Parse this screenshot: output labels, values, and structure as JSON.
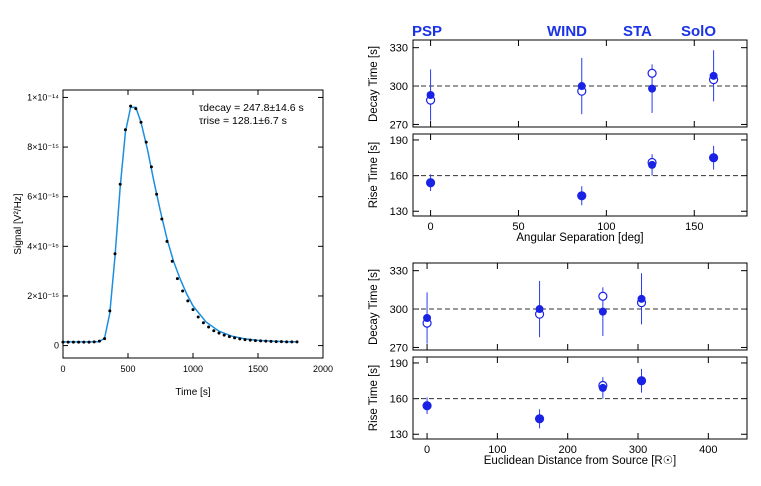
{
  "colors": {
    "curve": "#1a8fe0",
    "points": "#000000",
    "marker": "#1a22e6",
    "errorbar": "#2a3aee",
    "label": "#1a33e6",
    "reference_line": "#333333"
  },
  "spacecraft_labels": [
    "PSP",
    "WIND",
    "STA",
    "SolO"
  ],
  "chart_data": [
    {
      "type": "line",
      "xlabel": "Time [s]",
      "ylabel": "Signal [V²/Hz]",
      "xlim": [
        0,
        2000
      ],
      "ylim": [
        -5e-16,
        1.03e-14
      ],
      "x_ticks": [
        0,
        500,
        1000,
        1500,
        2000
      ],
      "y_ticks": [
        0,
        2e-15,
        4e-15,
        6e-15,
        8e-15,
        1e-14
      ],
      "y_tick_labels": [
        "0",
        "2×10⁻¹⁵",
        "4×10⁻¹⁵",
        "6×10⁻¹⁵",
        "8×10⁻¹⁵",
        "1×10⁻¹⁴"
      ],
      "annotations": [
        "τdecay = 247.8±14.6 s",
        "τrise = 128.1±6.7 s"
      ],
      "series": [
        {
          "style": "points",
          "x": [
            0,
            40,
            80,
            120,
            160,
            200,
            240,
            280,
            320,
            360,
            400,
            440,
            480,
            520,
            560,
            600,
            640,
            680,
            720,
            760,
            800,
            840,
            880,
            920,
            960,
            1000,
            1040,
            1080,
            1120,
            1160,
            1200,
            1240,
            1280,
            1320,
            1360,
            1400,
            1440,
            1480,
            1520,
            1560,
            1600,
            1640,
            1680,
            1720,
            1760,
            1800
          ],
          "y": [
            1.4e-16,
            1.4e-16,
            1.4e-16,
            1.4e-16,
            1.4e-16,
            1.4e-16,
            1.5e-16,
            1.8e-16,
            2.8e-16,
            1.4e-15,
            3.7e-15,
            6.5e-15,
            8.7e-15,
            9.65e-15,
            9.55e-15,
            9e-15,
            8.2e-15,
            7.2e-15,
            6.1e-15,
            5.1e-15,
            4.2e-15,
            3.4e-15,
            2.7e-15,
            2.2e-15,
            1.8e-15,
            1.45e-15,
            1.15e-15,
            9.2e-16,
            7.5e-16,
            6e-16,
            5e-16,
            4.2e-16,
            3.6e-16,
            3.1e-16,
            2.7e-16,
            2.4e-16,
            2.2e-16,
            2e-16,
            1.9e-16,
            1.8e-16,
            1.7e-16,
            1.6e-16,
            1.6e-16,
            1.5e-16,
            1.5e-16,
            1.5e-16
          ]
        },
        {
          "style": "line",
          "x": [
            0,
            100,
            200,
            280,
            320,
            360,
            400,
            440,
            480,
            520,
            560,
            600,
            650,
            700,
            750,
            800,
            850,
            900,
            950,
            1000,
            1100,
            1200,
            1300,
            1400,
            1500,
            1600,
            1700,
            1800
          ],
          "y": [
            1.5e-16,
            1.5e-16,
            1.5e-16,
            1.6e-16,
            3e-16,
            1.3e-15,
            3.6e-15,
            6.4e-15,
            8.6e-15,
            9.6e-15,
            9.6e-15,
            9e-15,
            7.9e-15,
            6.6e-15,
            5.4e-15,
            4.3e-15,
            3.4e-15,
            2.7e-15,
            2.1e-15,
            1.6e-15,
            9.5e-16,
            5.8e-16,
            3.8e-16,
            2.7e-16,
            2.1e-16,
            1.8e-16,
            1.6e-16,
            1.5e-16
          ]
        }
      ]
    },
    {
      "type": "scatter",
      "ylabel": "Decay Time [s]",
      "xlim": [
        -10,
        180
      ],
      "ylim": [
        268,
        336
      ],
      "y_ticks": [
        270,
        300,
        330
      ],
      "reference_line": 300,
      "series": [
        {
          "style": "filled",
          "x": [
            0,
            86,
            126,
            161
          ],
          "y": [
            293,
            300,
            298,
            308
          ],
          "err": [
            20,
            22,
            19,
            20
          ]
        },
        {
          "style": "open",
          "x": [
            0,
            86,
            126,
            161
          ],
          "y": [
            289,
            296,
            310,
            305
          ]
        }
      ]
    },
    {
      "type": "scatter",
      "xlabel": "Angular Separation [deg]",
      "ylabel": "Rise Time [s]",
      "xlim": [
        -10,
        180
      ],
      "ylim": [
        126,
        195
      ],
      "x_ticks": [
        0,
        50,
        100,
        150
      ],
      "y_ticks": [
        130,
        160,
        190
      ],
      "reference_line": 160,
      "series": [
        {
          "style": "filled",
          "x": [
            0,
            86,
            126,
            161
          ],
          "y": [
            154,
            143,
            169,
            175
          ],
          "err": [
            7,
            8,
            9,
            10
          ]
        },
        {
          "style": "open",
          "x": [
            0,
            86,
            126,
            161
          ],
          "y": [
            154,
            143,
            171,
            175
          ]
        }
      ]
    },
    {
      "type": "scatter",
      "ylabel": "Decay Time [s]",
      "xlim": [
        -20,
        455
      ],
      "ylim": [
        268,
        336
      ],
      "y_ticks": [
        270,
        300,
        330
      ],
      "reference_line": 300,
      "series": [
        {
          "style": "filled",
          "x": [
            0,
            160,
            250,
            305
          ],
          "y": [
            293,
            300,
            298,
            308
          ],
          "err": [
            20,
            22,
            19,
            20
          ]
        },
        {
          "style": "open",
          "x": [
            0,
            160,
            250,
            305
          ],
          "y": [
            289,
            296,
            310,
            305
          ]
        }
      ]
    },
    {
      "type": "scatter",
      "xlabel": "Euclidean Distance from Source [R☉]",
      "ylabel": "Rise Time [s]",
      "xlim": [
        -20,
        455
      ],
      "ylim": [
        126,
        195
      ],
      "x_ticks": [
        0,
        100,
        200,
        300,
        400
      ],
      "y_ticks": [
        130,
        160,
        190
      ],
      "reference_line": 160,
      "series": [
        {
          "style": "filled",
          "x": [
            0,
            160,
            250,
            305
          ],
          "y": [
            154,
            143,
            169,
            175
          ],
          "err": [
            7,
            8,
            9,
            10
          ]
        },
        {
          "style": "open",
          "x": [
            0,
            160,
            250,
            305
          ],
          "y": [
            154,
            143,
            171,
            175
          ]
        }
      ]
    }
  ]
}
